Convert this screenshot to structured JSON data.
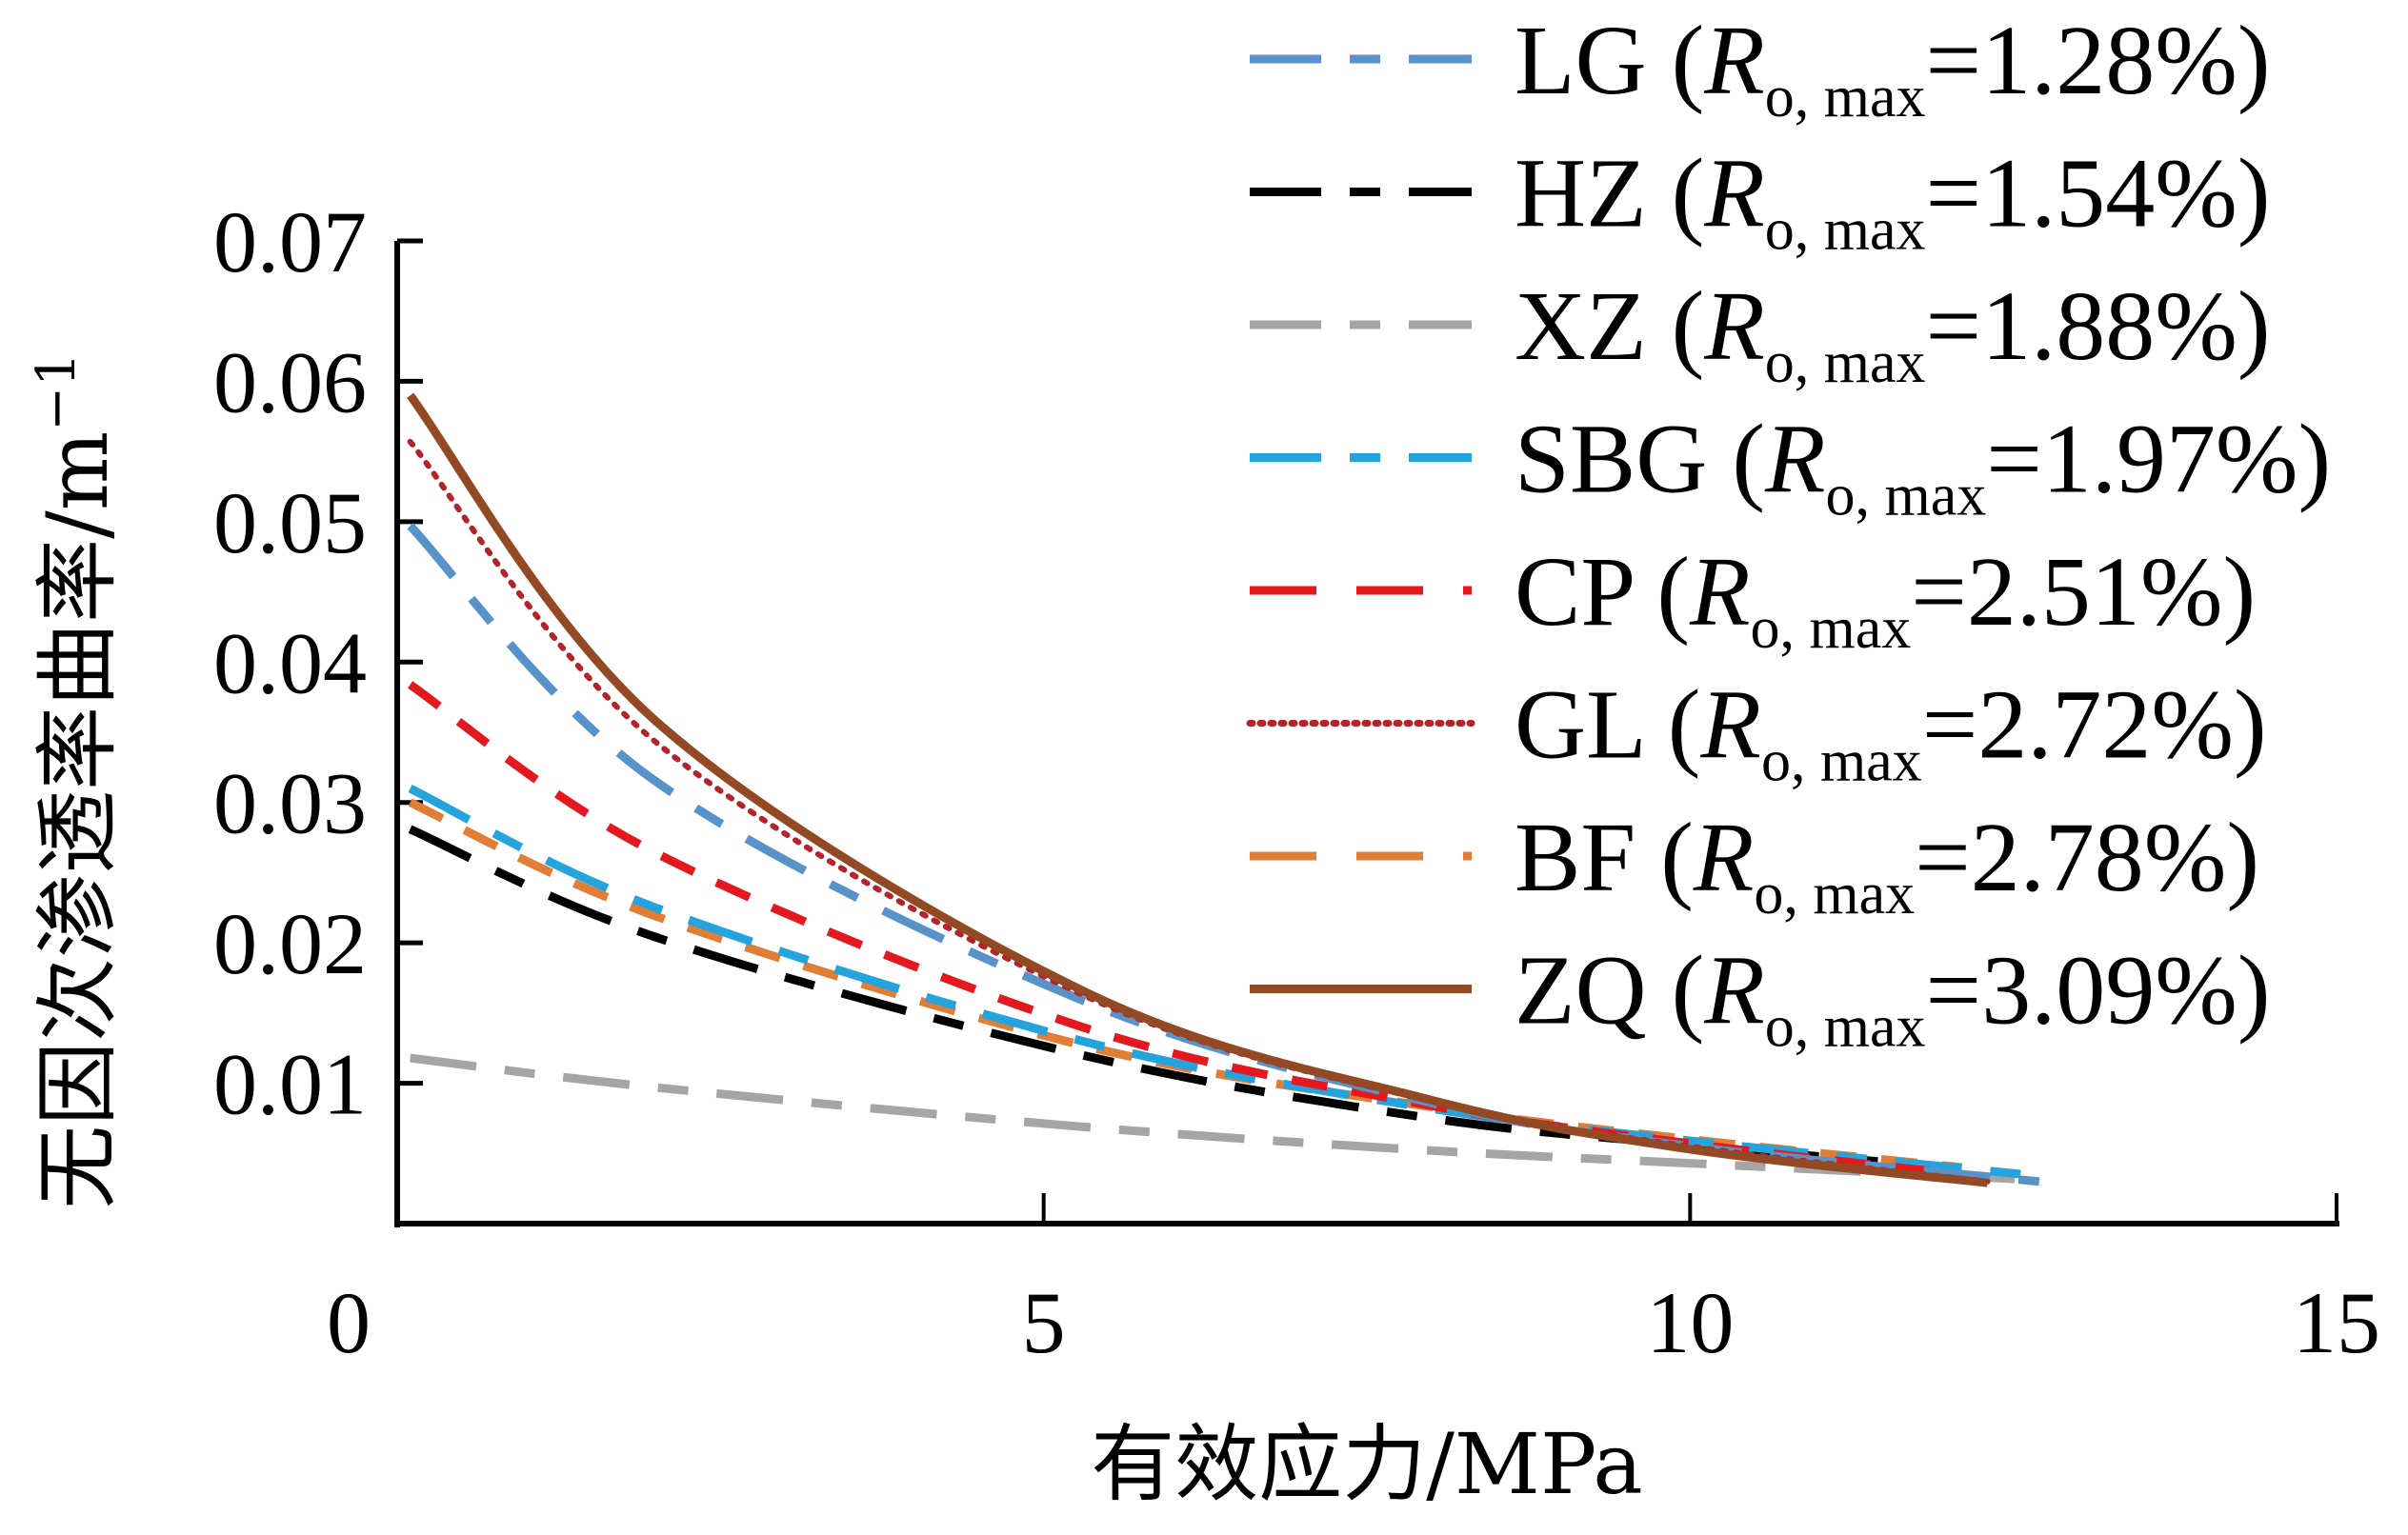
{
  "chart_data": {
    "type": "line",
    "title": "",
    "xlabel": "有效应力/MPa",
    "ylabel": "无因次渗透率曲率/m",
    "ylabel_superscript": "−1",
    "xlim": [
      0,
      15
    ],
    "ylim": [
      0,
      0.07
    ],
    "xticks": [
      0,
      5,
      10,
      15
    ],
    "xtick_labels": [
      "0",
      "5",
      "10",
      "15"
    ],
    "yticks": [
      0.01,
      0.02,
      0.03,
      0.04,
      0.05,
      0.06,
      0.07
    ],
    "ytick_labels": [
      "0.01",
      "0.02",
      "0.03",
      "0.04",
      "0.05",
      "0.06",
      "0.07"
    ],
    "grid": false,
    "legend_position": "top-right",
    "series": [
      {
        "name": "LG",
        "ro_max": "1.28%",
        "color": "#5793C8",
        "dash": "dash-dot",
        "x": [
          0.1,
          2.0,
          5.3,
          8.0,
          10.0,
          12.7
        ],
        "y": [
          0.0497,
          0.0315,
          0.0159,
          0.0086,
          0.0055,
          0.003
        ]
      },
      {
        "name": "HZ",
        "ro_max": "1.54%",
        "color": "#000000",
        "dash": "dash-dot",
        "x": [
          0.1,
          2.0,
          5.3,
          8.0,
          10.0,
          12.0
        ],
        "y": [
          0.0281,
          0.0204,
          0.012,
          0.0075,
          0.0056,
          0.004
        ]
      },
      {
        "name": "XZ",
        "ro_max": "1.88%",
        "color": "#A5A5A5",
        "dash": "dash-dot",
        "x": [
          0.1,
          2.0,
          5.3,
          8.0,
          10.0,
          12.7
        ],
        "y": [
          0.0118,
          0.0097,
          0.0069,
          0.0052,
          0.0043,
          0.0031
        ]
      },
      {
        "name": "SBG",
        "ro_max": "1.97%",
        "color": "#25A3DC",
        "dash": "dash-dot",
        "x": [
          0.1,
          2.0,
          5.3,
          8.0,
          10.0,
          12.7
        ],
        "y": [
          0.031,
          0.0225,
          0.013,
          0.0082,
          0.0059,
          0.0034
        ]
      },
      {
        "name": "CP",
        "ro_max": "2.51%",
        "color": "#E4191F",
        "dash": "dash",
        "x": [
          0.1,
          2.0,
          5.3,
          8.0,
          10.0,
          12.2
        ],
        "y": [
          0.0384,
          0.0264,
          0.014,
          0.0084,
          0.0057,
          0.0034
        ]
      },
      {
        "name": "GL",
        "ro_max": "2.72%",
        "color": "#B5232A",
        "dash": "dot",
        "x": [
          0.1,
          2.0,
          5.3,
          8.0,
          10.0,
          12.3
        ],
        "y": [
          0.0557,
          0.0343,
          0.0163,
          0.0087,
          0.0055,
          0.003
        ]
      },
      {
        "name": "BF",
        "ro_max": "2.78%",
        "color": "#E07E37",
        "dash": "dash",
        "x": [
          0.1,
          2.0,
          5.3,
          8.0,
          10.0,
          12.1
        ],
        "y": [
          0.03,
          0.0219,
          0.0127,
          0.0083,
          0.006,
          0.004
        ]
      },
      {
        "name": "ZQ",
        "ro_max": "3.09%",
        "color": "#934A24",
        "dash": "solid",
        "x": [
          0.1,
          2.0,
          5.3,
          8.0,
          10.0,
          12.3
        ],
        "y": [
          0.059,
          0.0358,
          0.0166,
          0.0088,
          0.0053,
          0.0029
        ]
      }
    ]
  },
  "legend_template": {
    "ro_symbol": "R",
    "ro_sub": "o, max"
  }
}
